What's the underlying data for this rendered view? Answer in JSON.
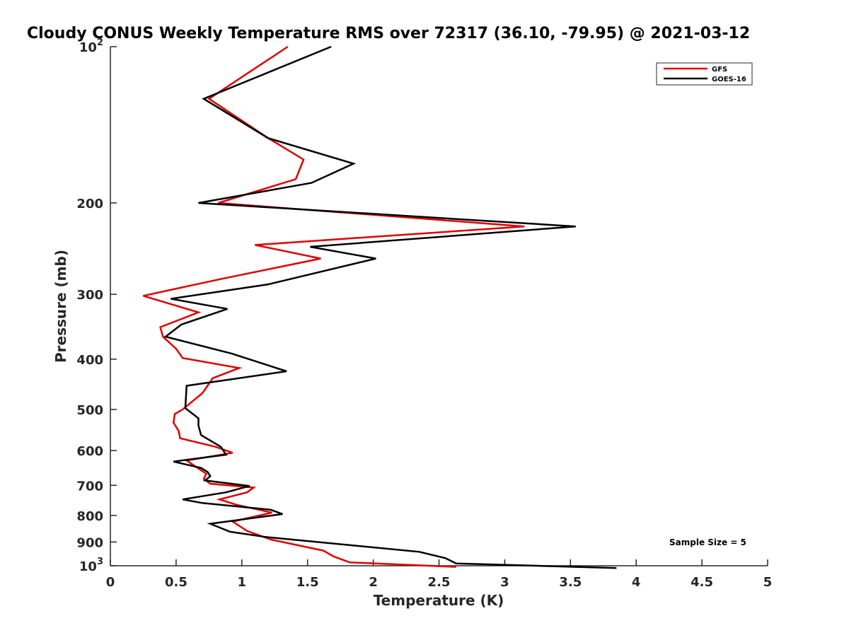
{
  "chart_data": {
    "type": "line",
    "title": "Cloudy CONUS Weekly Temperature RMS over 72317 (36.10, -79.95) @ 2021-03-12",
    "xlabel": "Temperature (K)",
    "ylabel": "Pressure (mb)",
    "xlim": [
      0,
      5
    ],
    "ylim": [
      100,
      1000
    ],
    "yscale": "log",
    "yreversed": true,
    "grid": false,
    "legend_position": "top-right",
    "x_ticks": [
      {
        "value": 0,
        "label": "0"
      },
      {
        "value": 0.5,
        "label": "0.5"
      },
      {
        "value": 1,
        "label": "1"
      },
      {
        "value": 1.5,
        "label": "1.5"
      },
      {
        "value": 2,
        "label": "2"
      },
      {
        "value": 2.5,
        "label": "2.5"
      },
      {
        "value": 3,
        "label": "3"
      },
      {
        "value": 3.5,
        "label": "3.5"
      },
      {
        "value": 4,
        "label": "4"
      },
      {
        "value": 4.5,
        "label": "4.5"
      },
      {
        "value": 5,
        "label": "5"
      }
    ],
    "y_ticks": [
      {
        "value": 100,
        "base": "10",
        "exp": "2"
      },
      {
        "value": 200,
        "label": "200"
      },
      {
        "value": 300,
        "label": "300"
      },
      {
        "value": 400,
        "label": "400"
      },
      {
        "value": 500,
        "label": "500"
      },
      {
        "value": 600,
        "label": "600"
      },
      {
        "value": 700,
        "label": "700"
      },
      {
        "value": 800,
        "label": "800"
      },
      {
        "value": 900,
        "label": "900"
      },
      {
        "value": 1000,
        "base": "10",
        "exp": "3"
      }
    ],
    "series": [
      {
        "name": "GFS",
        "color": "#e00000",
        "x": [
          1.35,
          0.75,
          1.2,
          1.47,
          1.41,
          0.82,
          3.15,
          1.1,
          1.6,
          0.85,
          0.25,
          0.67,
          0.38,
          0.4,
          0.5,
          0.55,
          0.98,
          0.78,
          0.7,
          0.55,
          0.49,
          0.48,
          0.52,
          0.53,
          0.8,
          0.93,
          0.58,
          0.66,
          0.73,
          0.71,
          0.76,
          1.09,
          1.04,
          0.83,
          0.96,
          1.23,
          0.93,
          1.04,
          1.22,
          1.62,
          1.7,
          1.82,
          2.63
        ],
        "y": [
          100,
          126,
          150,
          165,
          180,
          200,
          222,
          241,
          256,
          280,
          302,
          325,
          347,
          362,
          382,
          398,
          416,
          435,
          465,
          500,
          510,
          530,
          550,
          568,
          590,
          606,
          627,
          647,
          665,
          680,
          695,
          707,
          722,
          745,
          763,
          790,
          822,
          857,
          890,
          935,
          960,
          985,
          1005
        ]
      },
      {
        "name": "GOES-16",
        "color": "#000000",
        "x": [
          1.68,
          0.71,
          1.2,
          1.85,
          1.53,
          0.67,
          3.54,
          1.52,
          2.02,
          1.2,
          0.46,
          0.89,
          0.54,
          0.42,
          0.92,
          1.34,
          0.58,
          0.57,
          0.67,
          0.67,
          0.69,
          0.84,
          0.88,
          0.48,
          0.69,
          0.74,
          0.76,
          0.72,
          1.06,
          0.88,
          0.55,
          0.7,
          1.22,
          1.31,
          0.76,
          0.91,
          1.18,
          2.35,
          2.55,
          2.63,
          3.85
        ],
        "y": [
          100,
          126,
          150,
          168,
          183,
          200,
          222,
          243,
          256,
          287,
          306,
          320,
          343,
          362,
          390,
          422,
          450,
          497,
          520,
          537,
          560,
          590,
          611,
          630,
          648,
          660,
          672,
          685,
          702,
          722,
          745,
          757,
          780,
          795,
          830,
          860,
          880,
          940,
          967,
          990,
          1010
        ]
      }
    ],
    "annotations": [
      {
        "text": "Sample Size = 5"
      }
    ]
  }
}
